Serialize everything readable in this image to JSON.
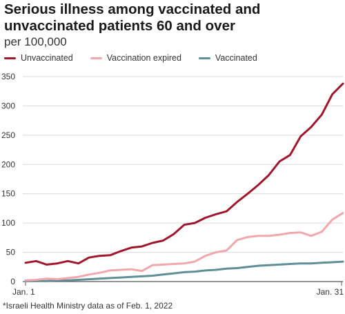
{
  "header": {
    "title": "Serious illness among vaccinated and unvaccinated patients 60 and over",
    "subtitle": "per 100,000"
  },
  "footnote": "*Israeli Health Ministry data as of Feb. 1, 2022",
  "chart_data": {
    "type": "line",
    "title": "Serious illness among vaccinated and unvaccinated patients 60 and over",
    "subtitle": "per 100,000",
    "xlabel": "",
    "ylabel": "",
    "x": [
      "Jan. 1",
      "Jan. 2",
      "Jan. 3",
      "Jan. 4",
      "Jan. 5",
      "Jan. 6",
      "Jan. 7",
      "Jan. 8",
      "Jan. 9",
      "Jan. 10",
      "Jan. 11",
      "Jan. 12",
      "Jan. 13",
      "Jan. 14",
      "Jan. 15",
      "Jan. 16",
      "Jan. 17",
      "Jan. 18",
      "Jan. 19",
      "Jan. 20",
      "Jan. 21",
      "Jan. 22",
      "Jan. 23",
      "Jan. 24",
      "Jan. 25",
      "Jan. 26",
      "Jan. 27",
      "Jan. 28",
      "Jan. 29",
      "Jan. 30",
      "Jan. 31"
    ],
    "x_tick_labels": [
      "Jan. 1",
      "Jan. 31"
    ],
    "y_ticks": [
      0,
      50,
      100,
      150,
      200,
      250,
      300,
      350
    ],
    "ylim": [
      0,
      350
    ],
    "grid": true,
    "legend_position": "top-left",
    "series": [
      {
        "name": "Unvaccinated",
        "color": "#a0162b",
        "values": [
          32,
          35,
          29,
          31,
          35,
          31,
          41,
          44,
          45,
          52,
          58,
          60,
          66,
          70,
          81,
          97,
          100,
          109,
          115,
          120,
          136,
          150,
          165,
          182,
          205,
          216,
          248,
          264,
          285,
          320,
          338
        ]
      },
      {
        "name": "Vaccination expired",
        "color": "#f2a7ad",
        "values": [
          2,
          3,
          5,
          4,
          6,
          8,
          12,
          15,
          19,
          20,
          21,
          18,
          28,
          29,
          30,
          31,
          34,
          44,
          50,
          53,
          71,
          76,
          78,
          78,
          80,
          83,
          84,
          78,
          85,
          106,
          117
        ]
      },
      {
        "name": "Vaccinated",
        "color": "#5e8e96",
        "values": [
          1,
          1,
          1,
          2,
          2,
          3,
          4,
          5,
          6,
          7,
          8,
          9,
          10,
          12,
          14,
          16,
          17,
          19,
          20,
          22,
          23,
          25,
          27,
          28,
          29,
          30,
          31,
          31,
          32,
          33,
          34
        ]
      }
    ]
  }
}
